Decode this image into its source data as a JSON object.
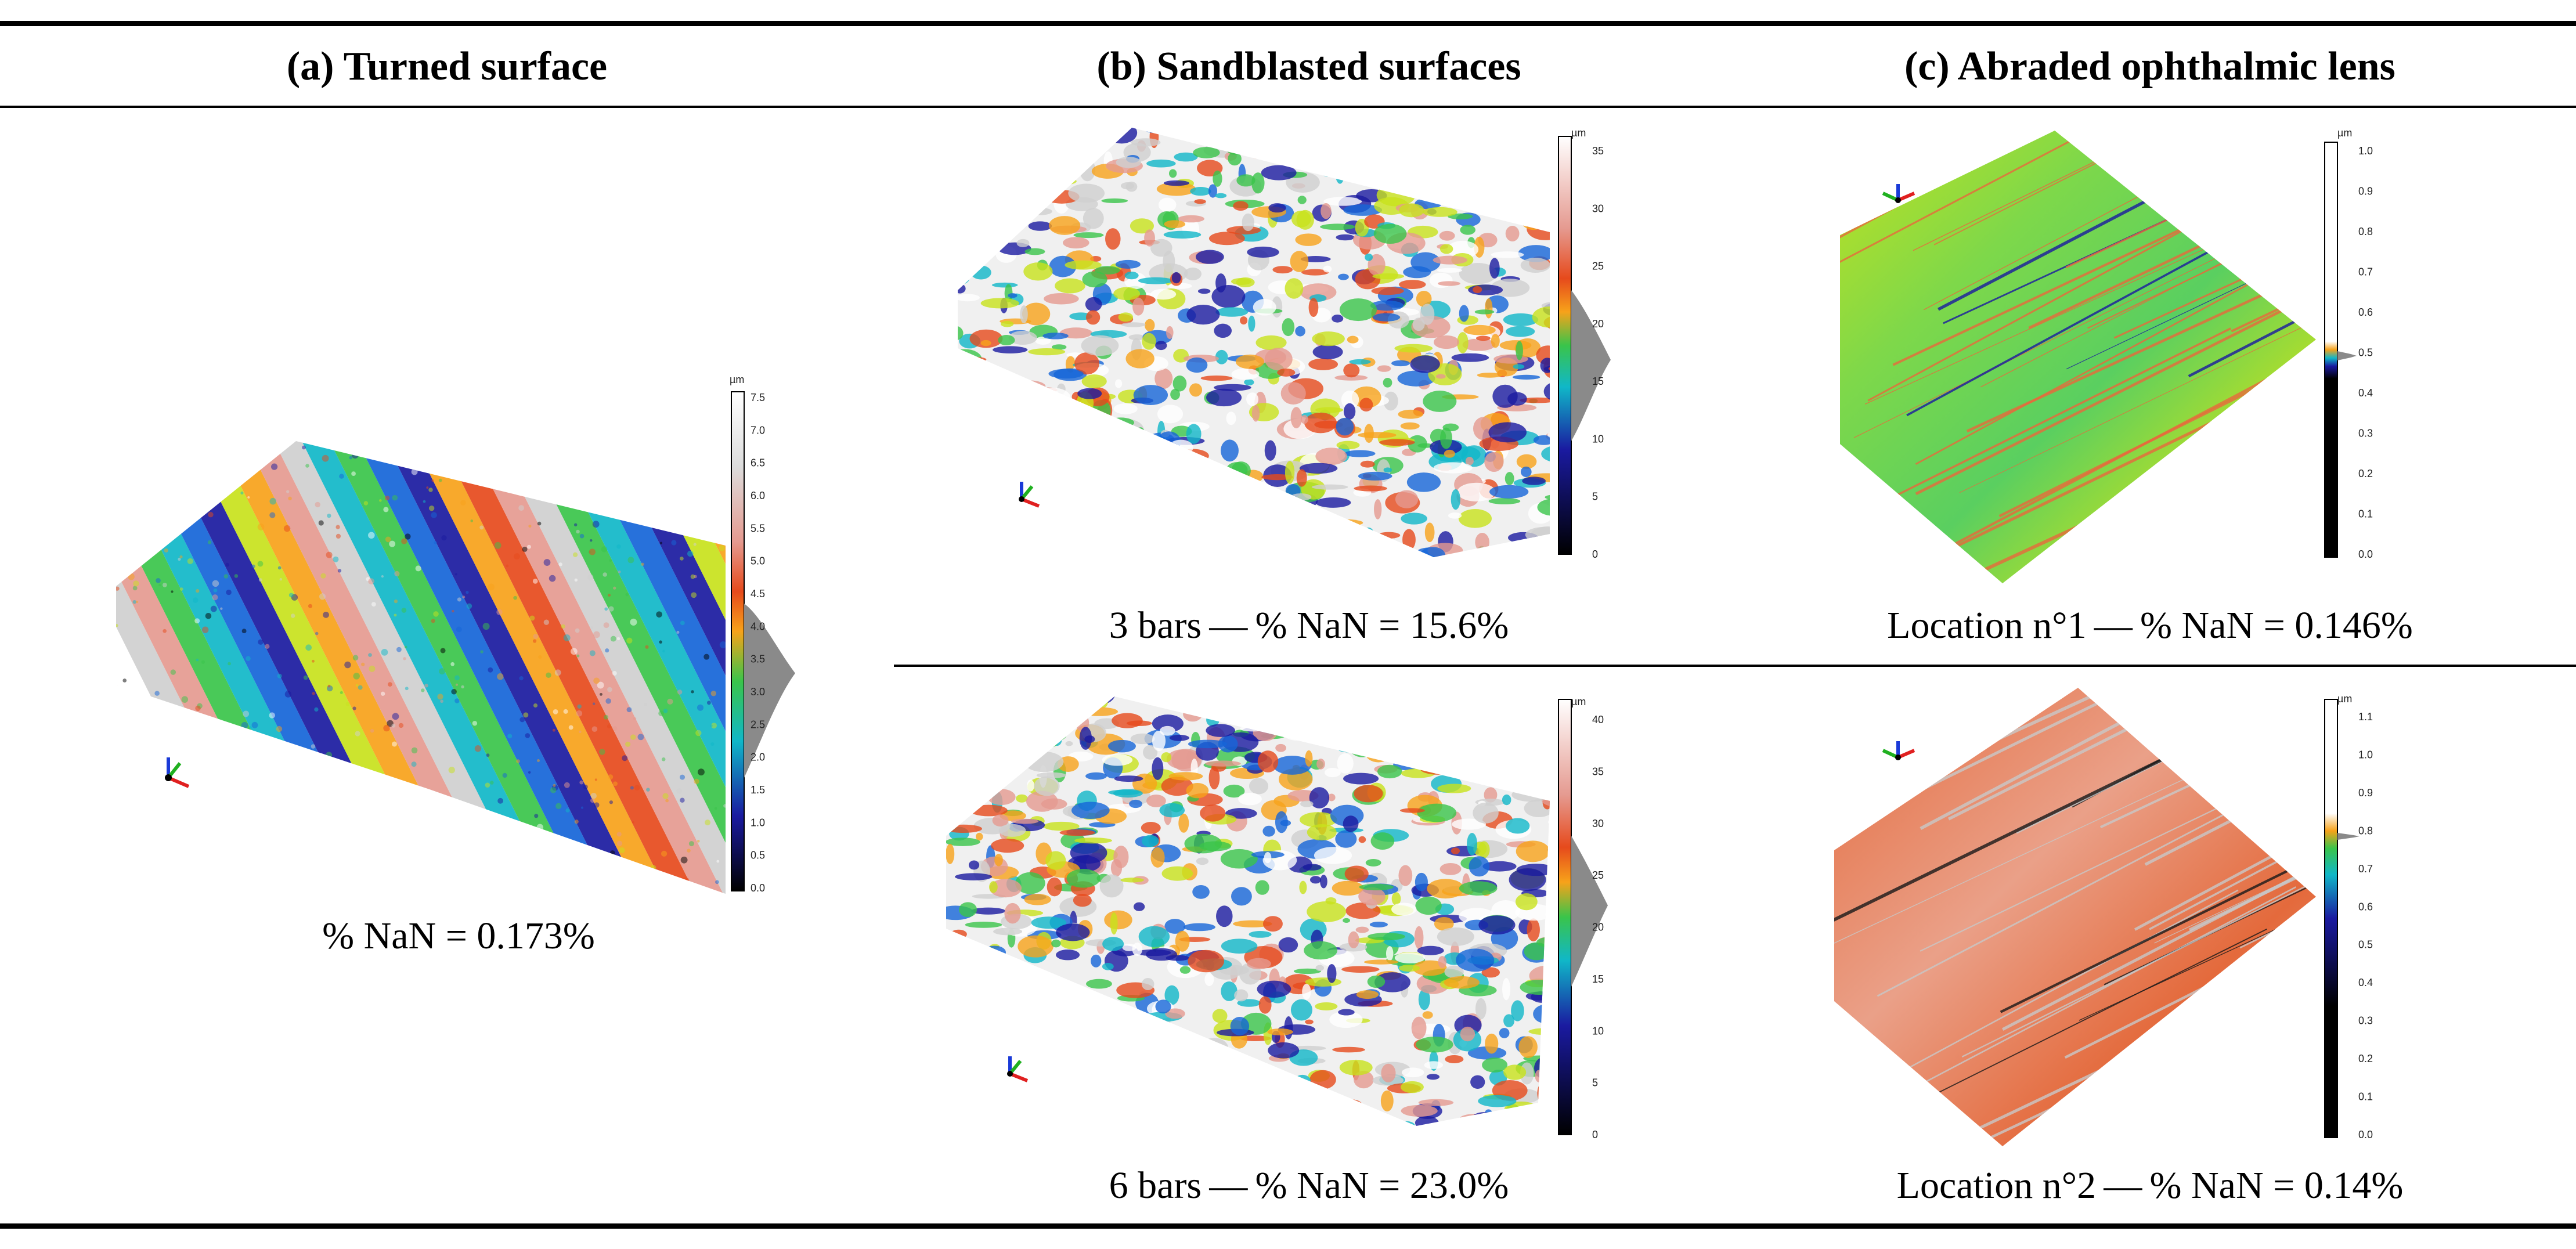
{
  "headers": {
    "a": "(a) Turned surface",
    "b": "(b) Sandblasted surfaces",
    "c": "(c) Abraded ophthalmic lens"
  },
  "captions": {
    "a": "% NaN = 0.173%",
    "b_top": "3 bars — % NaN = 15.6%",
    "b_bottom": "6 bars — % NaN = 23.0%",
    "c_top": "Location n°1 — % NaN = 0.146%",
    "c_bottom": "Location n°2 — % NaN = 0.14%"
  },
  "scales": {
    "unit": "µm",
    "a": [
      "7.5",
      "7.0",
      "6.5",
      "6.0",
      "5.5",
      "5.0",
      "4.5",
      "4.0",
      "3.5",
      "3.0",
      "2.5",
      "2.0",
      "1.5",
      "1.0",
      "0.5",
      "0.0"
    ],
    "b_top": [
      "35",
      "30",
      "25",
      "20",
      "15",
      "10",
      "5",
      "0"
    ],
    "b_bottom": [
      "40",
      "35",
      "30",
      "25",
      "20",
      "15",
      "10",
      "5",
      "0"
    ],
    "c_top": [
      "1.0",
      "0.9",
      "0.8",
      "0.7",
      "0.6",
      "0.5",
      "0.4",
      "0.3",
      "0.2",
      "0.1",
      "0.0"
    ],
    "c_bottom": [
      "1.1",
      "1.0",
      "0.9",
      "0.8",
      "0.7",
      "0.6",
      "0.5",
      "0.4",
      "0.3",
      "0.2",
      "0.1",
      "0.0"
    ]
  },
  "colors": {
    "rainbow": [
      "#000000",
      "#1a1aa0",
      "#1565d8",
      "#10b7c8",
      "#3ac44a",
      "#c8e21c",
      "#f7a21a",
      "#e64a1c",
      "#e59a90",
      "#cfcfcf",
      "#ffffff"
    ],
    "lens_green": "#7ed84a",
    "lens_red": "#e86a3c"
  }
}
